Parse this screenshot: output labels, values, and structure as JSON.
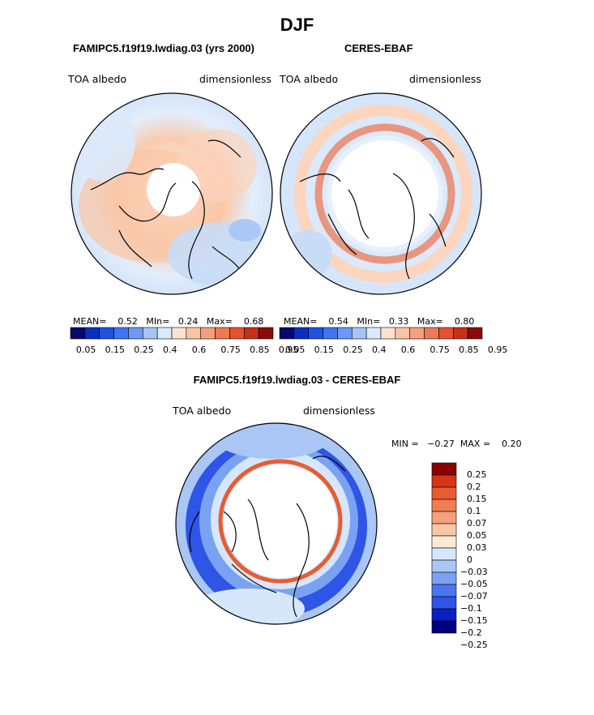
{
  "title": "DJF",
  "colors": {
    "seq": [
      "#08086e",
      "#0a2fc0",
      "#1f52e0",
      "#3f74f2",
      "#6d98f5",
      "#a6c4f5",
      "#dbe9fb",
      "#fde2cf",
      "#f9c4a4",
      "#f4a07c",
      "#ec7a55",
      "#e4522e",
      "#c8301a",
      "#8c0a0a"
    ],
    "diff": [
      "#00007f",
      "#0a1fc4",
      "#2e55e6",
      "#4c76f0",
      "#7aa2f2",
      "#a9c6f5",
      "#d6e7fb",
      "#fde9d8",
      "#f8c6a6",
      "#f3a17a",
      "#ee7e54",
      "#e85c30",
      "#d53416",
      "#8b0000"
    ],
    "land_line": "#000000"
  },
  "panels": [
    {
      "id": "left",
      "subtitle": "FAMIPC5.f19f19.lwdiag.03 (yrs 2000)",
      "label_left": "TOA albedo",
      "label_right": "dimensionless",
      "mean_label": "MEAN=",
      "mean": "0.52",
      "min_label": "MIn=",
      "min": "0.24",
      "max_label": "Max=",
      "max": "0.68"
    },
    {
      "id": "right",
      "subtitle": "CERES-EBAF",
      "label_left": "TOA albedo",
      "label_right": "dimensionless",
      "mean_label": "MEAN=",
      "mean": "0.54",
      "min_label": "MIn=",
      "min": "0.33",
      "max_label": "Max=",
      "max": "0.80"
    }
  ],
  "diff_panel": {
    "subtitle": "FAMIPC5.f19f19.lwdiag.03 - CERES-EBAF",
    "label_left": "TOA albedo",
    "label_right": "dimensionless",
    "min_label": "MIN =",
    "min": "−0.27",
    "max_label": "MAX =",
    "max": "0.20"
  },
  "chart_data": [
    {
      "type": "heatmap",
      "projection": "north polar stereographic",
      "title": "FAMIPC5.f19f19.lwdiag.03 (yrs 2000)",
      "variable": "TOA albedo",
      "units": "dimensionless",
      "mean": 0.52,
      "min": 0.24,
      "max": 0.68,
      "colorbar": {
        "orientation": "horizontal",
        "levels": [
          0.05,
          0.1,
          0.15,
          0.2,
          0.25,
          0.3,
          0.4,
          0.5,
          0.6,
          0.7,
          0.75,
          0.8,
          0.85,
          0.9,
          0.95
        ],
        "tick_labels": [
          "0.05",
          "0.15",
          "0.25",
          "0.4",
          "0.6",
          "0.75",
          "0.85",
          "0.95"
        ]
      }
    },
    {
      "type": "heatmap",
      "projection": "north polar stereographic",
      "title": "CERES-EBAF",
      "variable": "TOA albedo",
      "units": "dimensionless",
      "mean": 0.54,
      "min": 0.33,
      "max": 0.8,
      "colorbar": {
        "orientation": "horizontal",
        "levels": [
          0.05,
          0.1,
          0.15,
          0.2,
          0.25,
          0.3,
          0.4,
          0.5,
          0.6,
          0.7,
          0.75,
          0.8,
          0.85,
          0.9,
          0.95
        ],
        "tick_labels": [
          "0.05",
          "0.15",
          "0.25",
          "0.4",
          "0.6",
          "0.75",
          "0.85",
          "0.95"
        ]
      }
    },
    {
      "type": "heatmap",
      "projection": "north polar stereographic",
      "title": "FAMIPC5.f19f19.lwdiag.03 - CERES-EBAF",
      "variable": "TOA albedo",
      "units": "dimensionless",
      "min": -0.27,
      "max": 0.2,
      "colorbar": {
        "orientation": "vertical",
        "tick_labels": [
          "0.25",
          "0.2",
          "0.15",
          "0.1",
          "0.07",
          "0.05",
          "0.03",
          "0",
          "−0.03",
          "−0.05",
          "−0.07",
          "−0.1",
          "−0.15",
          "−0.2",
          "−0.25"
        ]
      }
    }
  ]
}
